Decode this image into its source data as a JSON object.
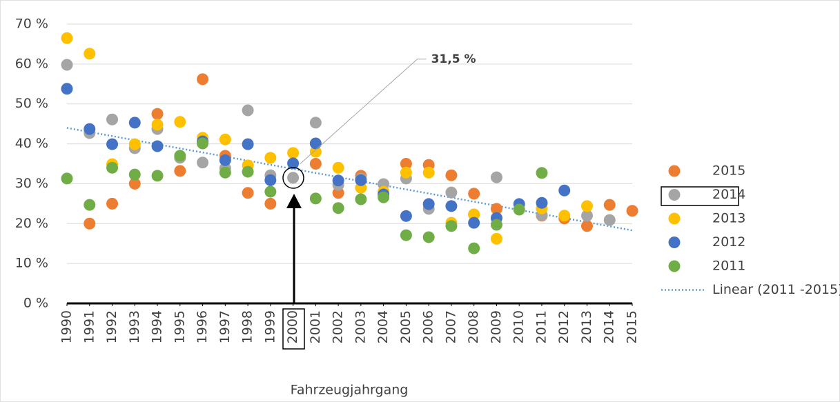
{
  "chart_data": {
    "type": "scatter",
    "x_label": "Fahrzeugjahrgang",
    "x": [
      1990,
      1991,
      1992,
      1993,
      1994,
      1995,
      1996,
      1997,
      1998,
      1999,
      2000,
      2001,
      2002,
      2003,
      2004,
      2005,
      2006,
      2007,
      2008,
      2009,
      2010,
      2011,
      2012,
      2013,
      2014,
      2015
    ],
    "series": [
      {
        "name": "2015",
        "color": "#ed7d31",
        "values": [
          null,
          20,
          25,
          30,
          47.5,
          33.2,
          56.2,
          37,
          27.7,
          25,
          null,
          35,
          27.7,
          32,
          28,
          35,
          34.7,
          32.1,
          27.5,
          23.7,
          null,
          22,
          21.3,
          19.4,
          24.7,
          23.2
        ]
      },
      {
        "name": "2014",
        "color": "#a5a5a5",
        "values": [
          59.8,
          42.7,
          46.1,
          38.9,
          43.7,
          36.5,
          35.3,
          33.9,
          48.4,
          32.1,
          31.5,
          45.3,
          29.7,
          31.3,
          29.9,
          31.3,
          23.7,
          27.8,
          22.3,
          31.6,
          null,
          22.1,
          null,
          22,
          20.9,
          null
        ]
      },
      {
        "name": "2013",
        "color": "#ffc000",
        "values": [
          66.5,
          62.6,
          34.9,
          39.9,
          44.8,
          45.5,
          41.5,
          41.1,
          34.6,
          36.5,
          37.7,
          38,
          34,
          29,
          28,
          32.8,
          32.8,
          20.2,
          22.3,
          16.2,
          null,
          23.8,
          22,
          24.4,
          null,
          null
        ]
      },
      {
        "name": "2012",
        "color": "#4472c4",
        "values": [
          53.8,
          43.7,
          39.9,
          45.3,
          39.4,
          null,
          40.6,
          35.9,
          39.9,
          30.9,
          35.1,
          40.1,
          30.8,
          30.9,
          27.3,
          21.9,
          24.9,
          24.4,
          20.2,
          21.4,
          24.9,
          25.2,
          28.3,
          null,
          null,
          null
        ]
      },
      {
        "name": "2011",
        "color": "#70ad47",
        "values": [
          31.3,
          24.7,
          34,
          32.3,
          32,
          37,
          40.1,
          32.8,
          33,
          28,
          null,
          26.3,
          23.9,
          26.1,
          26.6,
          17.1,
          16.6,
          19.4,
          13.8,
          19.7,
          23.5,
          32.7,
          null,
          null,
          null,
          null
        ]
      }
    ],
    "trend": {
      "name": "Linear (2011 -2015)",
      "color": "#5b9bd5",
      "x": [
        1990,
        2015
      ],
      "values": [
        44,
        18.3
      ]
    },
    "annotations": [
      {
        "text": "31,5 %",
        "x": 2000,
        "y": 31.5
      }
    ],
    "xlim": [
      1990,
      2015
    ],
    "xticks": [
      1990,
      1991,
      1992,
      1993,
      1994,
      1995,
      1996,
      1997,
      1998,
      1999,
      2000,
      2001,
      2002,
      2003,
      2004,
      2005,
      2006,
      2007,
      2008,
      2009,
      2010,
      2011,
      2012,
      2013,
      2014,
      2015
    ],
    "ylim": [
      0,
      70
    ],
    "yticks": [
      {
        "value": 0,
        "label": "0 %"
      },
      {
        "value": 10,
        "label": "10 %"
      },
      {
        "value": 20,
        "label": "20 %"
      },
      {
        "value": 30,
        "label": "30 %"
      },
      {
        "value": 40,
        "label": "40 %"
      },
      {
        "value": 50,
        "label": "50 %"
      },
      {
        "value": 60,
        "label": "60 %"
      },
      {
        "value": 70,
        "label": "70 %"
      }
    ],
    "grid": true,
    "legend": "right"
  }
}
